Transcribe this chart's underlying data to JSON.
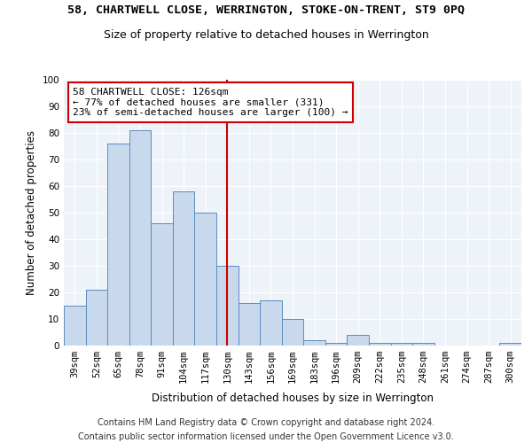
{
  "title": "58, CHARTWELL CLOSE, WERRINGTON, STOKE-ON-TRENT, ST9 0PQ",
  "subtitle": "Size of property relative to detached houses in Werrington",
  "xlabel": "Distribution of detached houses by size in Werrington",
  "ylabel": "Number of detached properties",
  "categories": [
    "39sqm",
    "52sqm",
    "65sqm",
    "78sqm",
    "91sqm",
    "104sqm",
    "117sqm",
    "130sqm",
    "143sqm",
    "156sqm",
    "169sqm",
    "183sqm",
    "196sqm",
    "209sqm",
    "222sqm",
    "235sqm",
    "248sqm",
    "261sqm",
    "274sqm",
    "287sqm",
    "300sqm"
  ],
  "values": [
    15,
    21,
    76,
    81,
    46,
    58,
    50,
    30,
    16,
    17,
    10,
    2,
    1,
    4,
    1,
    1,
    1,
    0,
    0,
    0,
    1
  ],
  "bar_color": "#c9d9ed",
  "bar_edge_color": "#5b8bbf",
  "vline_x": 7.0,
  "vline_color": "#cc0000",
  "annotation_text": "58 CHARTWELL CLOSE: 126sqm\n← 77% of detached houses are smaller (331)\n23% of semi-detached houses are larger (100) →",
  "annotation_box_color": "#ffffff",
  "annotation_box_edge": "#cc0000",
  "ylim": [
    0,
    100
  ],
  "yticks": [
    0,
    10,
    20,
    30,
    40,
    50,
    60,
    70,
    80,
    90,
    100
  ],
  "footer1": "Contains HM Land Registry data © Crown copyright and database right 2024.",
  "footer2": "Contains public sector information licensed under the Open Government Licence v3.0.",
  "bg_color": "#eef3f9",
  "title_fontsize": 9.5,
  "subtitle_fontsize": 9,
  "axis_label_fontsize": 8.5,
  "tick_fontsize": 7.5,
  "annotation_fontsize": 8,
  "footer_fontsize": 7
}
